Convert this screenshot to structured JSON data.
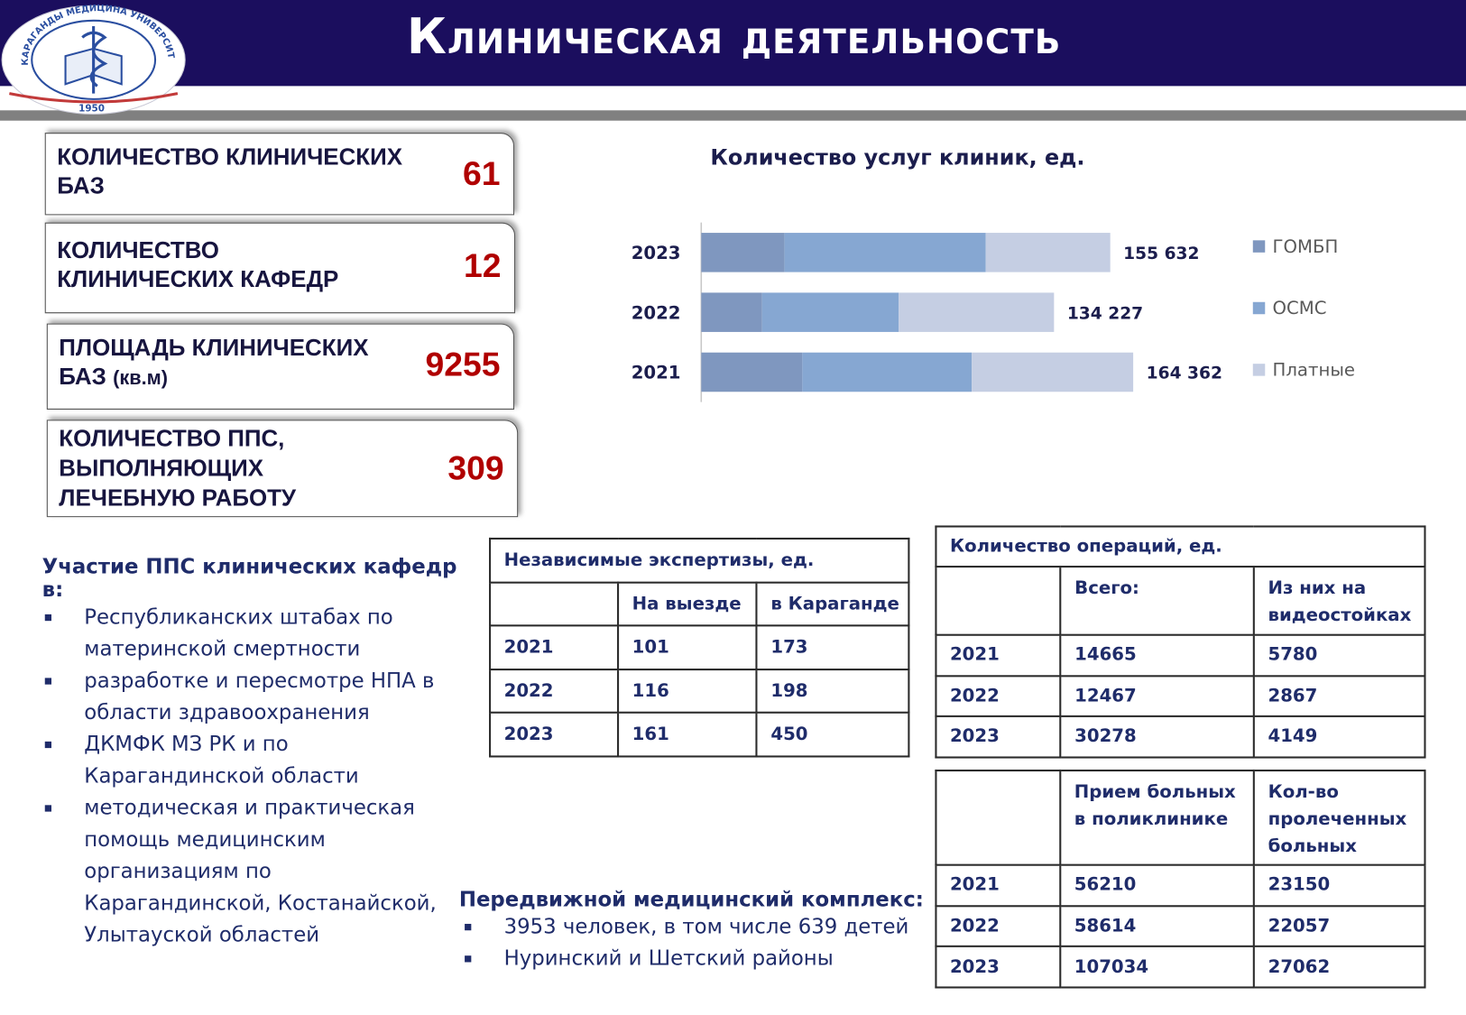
{
  "header": {
    "title": "Клиническая деятельность",
    "logo_text": "КАРАГАНДЫ МЕДИЦИНА УНИВЕРСИТЕТІ",
    "logo_year": "1950"
  },
  "cards": [
    {
      "label": "КОЛИЧЕСТВО КЛИНИЧЕСКИХ БАЗ",
      "value": "61"
    },
    {
      "label": "КОЛИЧЕСТВО КЛИНИЧЕСКИХ КАФЕДР",
      "value": "12"
    },
    {
      "label": "ПЛОЩАДЬ КЛИНИЧЕСКИХ БАЗ",
      "unit": "(кв.м)",
      "value": "9255"
    },
    {
      "label": "КОЛИЧЕСТВО ППС, ВЫПОЛНЯЮЩИХ ЛЕЧЕБНУЮ РАБОТУ",
      "value": "309"
    }
  ],
  "chart_data": {
    "type": "stacked-bar-horizontal",
    "title": "Количество услуг клиник, ед.",
    "categories": [
      "2023",
      "2022",
      "2021"
    ],
    "series": [
      {
        "name": "ГОМБП",
        "color": "#7f97bf",
        "values": [
          31700,
          23150,
          38460
        ]
      },
      {
        "name": "ОСМС",
        "color": "#86a7d2",
        "values": [
          76560,
          52000,
          64460
        ]
      },
      {
        "name": "Платные",
        "color": "#c5cee3",
        "values": [
          47372,
          59077,
          61442
        ]
      }
    ],
    "totals": [
      155632,
      134227,
      164362
    ],
    "total_labels": [
      "155 632",
      "134 227",
      "164 362"
    ],
    "legend": "right"
  },
  "participation": {
    "title": "Участие ППС клинических кафедр в:",
    "items": [
      "Республиканских штабах по материнской смертности",
      "разработке и пересмотре НПА в области здравоохранения",
      "ДКМФК МЗ РК и по Карагандинской области",
      "методическая и практическая помощь медицинским организациям по Карагандинской, Костанайской, Улытауской областей"
    ]
  },
  "mobile_complex": {
    "title": "Передвижной медицинский комплекс:",
    "items": [
      "3953 человек, в том числе 639 детей",
      "Нуринский и Шетский районы"
    ]
  },
  "tables": [
    {
      "title": "Независимые экспертизы, ед.",
      "header": [
        "",
        "На выезде",
        "в Караганде"
      ],
      "rows": [
        [
          "2021",
          "101",
          "173"
        ],
        [
          "2022",
          "116",
          "198"
        ],
        [
          "2023",
          "161",
          "450"
        ]
      ]
    },
    {
      "title": "Количество операций, ед.",
      "header": [
        "",
        "Всего:",
        "Из них на видеостойках"
      ],
      "rows": [
        [
          "2021",
          "14665",
          "5780"
        ],
        [
          "2022",
          "12467",
          "2867"
        ],
        [
          "2023",
          "30278",
          "4149"
        ]
      ]
    },
    {
      "header": [
        "",
        "Прием больных в поликлинике",
        "Кол-во пролеченных больных"
      ],
      "rows": [
        [
          "2021",
          "56210",
          "23150"
        ],
        [
          "2022",
          "58614",
          "22057"
        ],
        [
          "2023",
          "107034",
          "27062"
        ]
      ]
    }
  ]
}
